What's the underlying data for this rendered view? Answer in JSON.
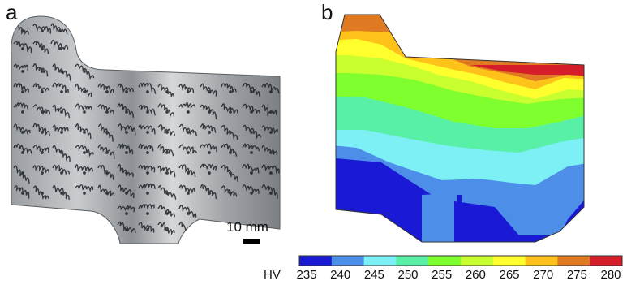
{
  "panels": {
    "a": "a",
    "b": "b"
  },
  "scale_bar": {
    "label": "10 mm"
  },
  "colorbar": {
    "prefix": "HV",
    "ticks": [
      "235",
      "240",
      "245",
      "250",
      "255",
      "260",
      "265",
      "270",
      "275",
      "280"
    ],
    "colors": [
      "#1a1ad6",
      "#4d8fe8",
      "#7cf0f4",
      "#58f0a6",
      "#80ff2e",
      "#c9ff2e",
      "#ffff2e",
      "#ffc21a",
      "#e07a22",
      "#d61e2a"
    ]
  },
  "hardness_map_colors": [
    "#1a1ad6",
    "#4d8fe8",
    "#7cf0f4",
    "#58f0a6",
    "#80ff2e",
    "#c9ff2e",
    "#ffff2e",
    "#ffc21a",
    "#e07a22",
    "#d61e2a"
  ]
}
